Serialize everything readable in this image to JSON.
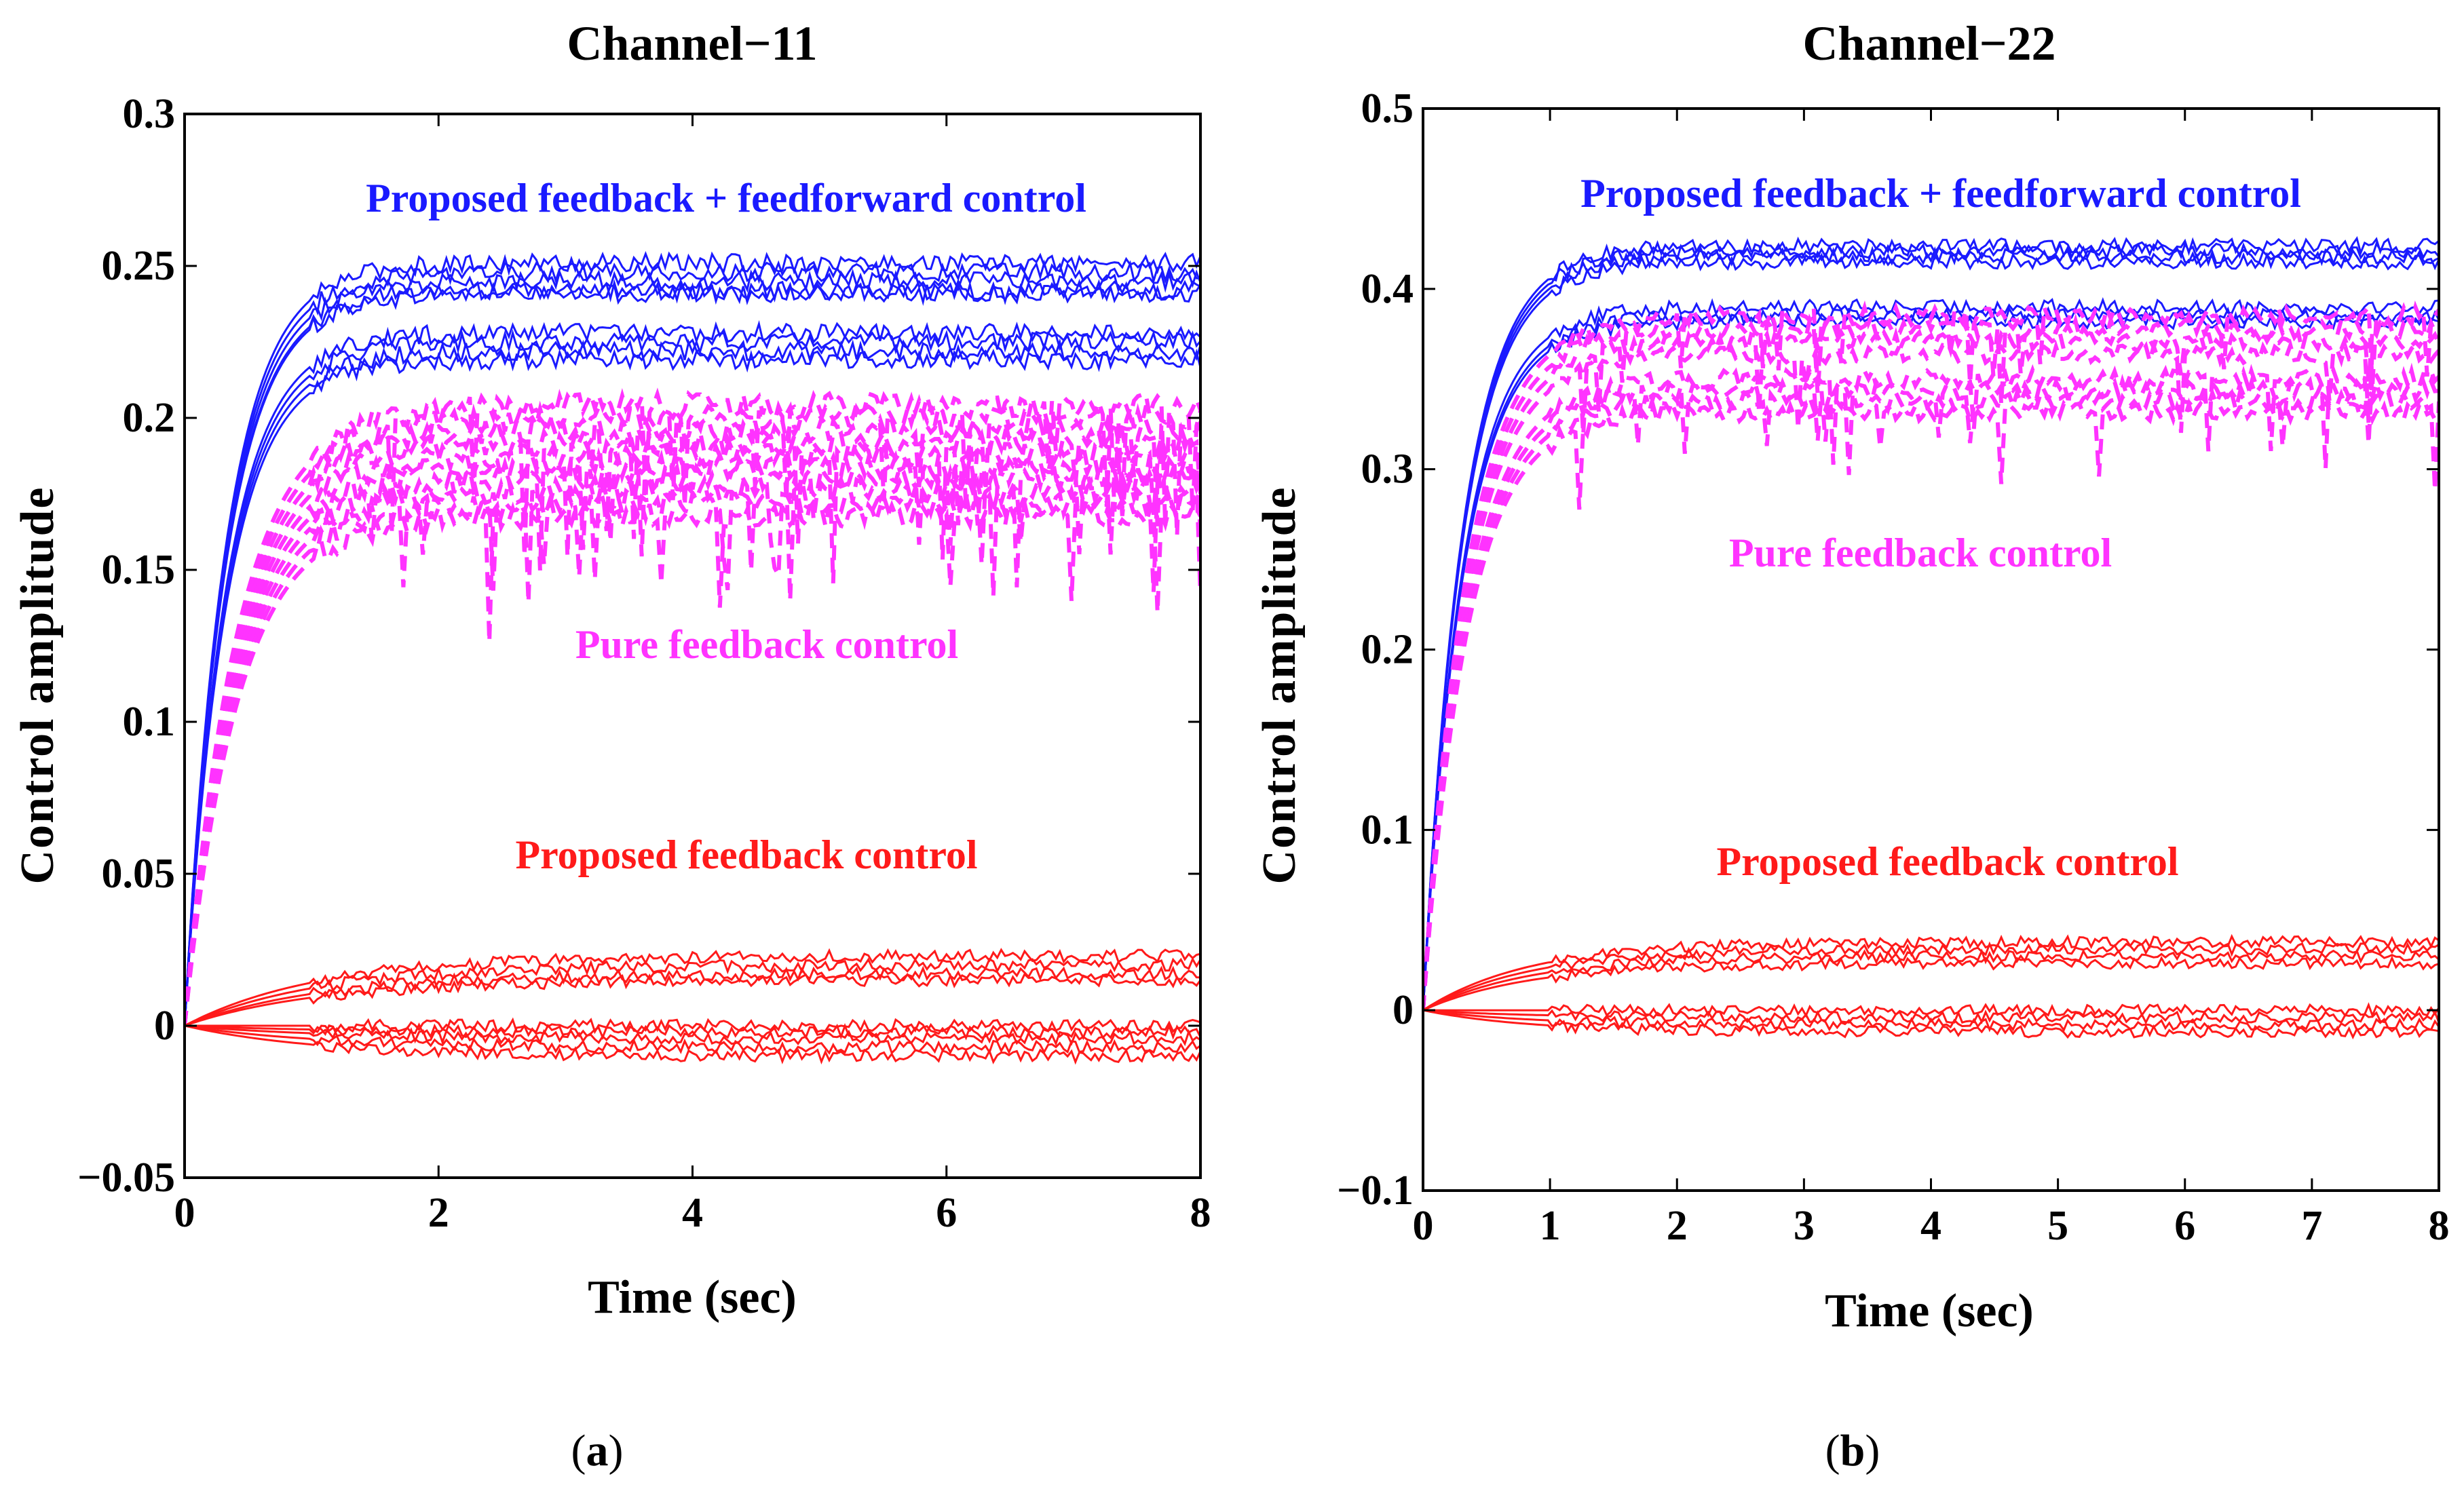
{
  "chart_data": [
    {
      "type": "line",
      "panel_label": "a",
      "title": "Channel−11",
      "xlabel": "Time (sec)",
      "ylabel": "Control amplitude",
      "xlim": [
        0,
        8
      ],
      "ylim": [
        -0.05,
        0.3
      ],
      "xticks": [
        "0",
        "2",
        "4",
        "6",
        "8"
      ],
      "yticks": [
        "−0.05",
        "0",
        "0.05",
        "0.1",
        "0.15",
        "0.2",
        "0.25",
        "0.3"
      ],
      "annotations": [
        {
          "text": "Proposed feedback + feedforward control",
          "color": "#1a1aff"
        },
        {
          "text": "Pure feedback control",
          "color": "#ff33ff"
        },
        {
          "text": "Proposed feedback control",
          "color": "#ff1a1a"
        }
      ],
      "series": [
        {
          "name": "Proposed feedback + feedforward control",
          "color": "#1a1aff",
          "style": "solid",
          "final_values": [
            0.251,
            0.248,
            0.245,
            0.242,
            0.241,
            0.228,
            0.225,
            0.222,
            0.219
          ],
          "time_constant": 0.32,
          "noise": 0.003
        },
        {
          "name": "Pure feedback control",
          "color": "#ff33ff",
          "style": "dashed",
          "final_values": [
            0.204,
            0.2,
            0.196,
            0.192,
            0.188,
            0.184,
            0.18,
            0.176,
            0.172,
            0.168
          ],
          "time_constant": 0.4,
          "noise": 0.004
        },
        {
          "name": "Proposed feedback control",
          "color": "#ff1a1a",
          "style": "solid",
          "final_values": [
            0.023,
            0.02,
            0.017,
            0.015,
            0.0,
            -0.002,
            -0.004,
            -0.007,
            -0.01
          ],
          "time_constant": 1.0,
          "noise": 0.002
        }
      ]
    },
    {
      "type": "line",
      "panel_label": "b",
      "title": "Channel−22",
      "xlabel": "Time (sec)",
      "ylabel": "Control amplitude",
      "xlim": [
        0,
        8
      ],
      "ylim": [
        -0.1,
        0.5
      ],
      "xticks": [
        "0",
        "1",
        "2",
        "3",
        "4",
        "5",
        "6",
        "7",
        "8"
      ],
      "yticks": [
        "−0.1",
        "0",
        "0.1",
        "0.2",
        "0.3",
        "0.4",
        "0.5"
      ],
      "annotations": [
        {
          "text": "Proposed feedback + feedforward control",
          "color": "#1a1aff"
        },
        {
          "text": "Pure feedback control",
          "color": "#ff33ff"
        },
        {
          "text": "Proposed feedback control",
          "color": "#ff1a1a"
        }
      ],
      "series": [
        {
          "name": "Proposed feedback + feedforward control",
          "color": "#1a1aff",
          "style": "solid",
          "final_values": [
            0.424,
            0.421,
            0.418,
            0.415,
            0.39,
            0.385,
            0.382
          ],
          "time_constant": 0.35,
          "noise": 0.004
        },
        {
          "name": "Pure feedback control",
          "color": "#ff33ff",
          "style": "dashed",
          "final_values": [
            0.385,
            0.378,
            0.371,
            0.364,
            0.35,
            0.344,
            0.338,
            0.332
          ],
          "time_constant": 0.38,
          "noise": 0.005
        },
        {
          "name": "Proposed feedback control",
          "color": "#ff1a1a",
          "style": "solid",
          "final_values": [
            0.038,
            0.034,
            0.03,
            0.026,
            0.0,
            -0.004,
            -0.008,
            -0.012
          ],
          "time_constant": 0.9,
          "noise": 0.003
        }
      ]
    }
  ]
}
